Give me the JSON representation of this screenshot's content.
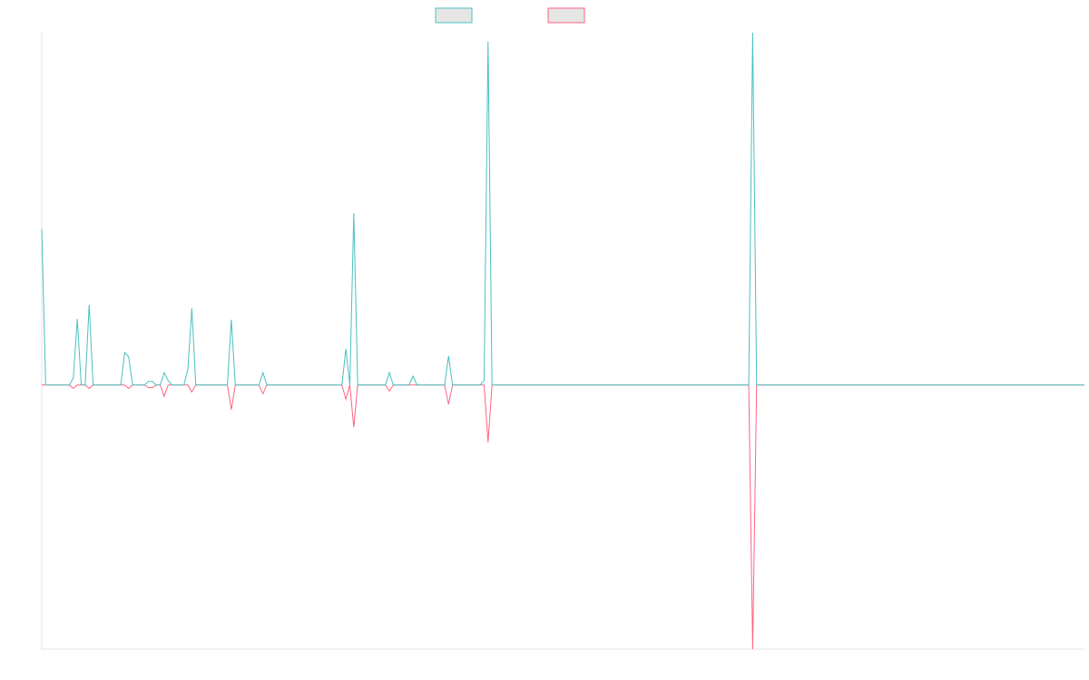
{
  "chart_data": {
    "type": "line",
    "x": [
      0,
      1,
      7,
      8,
      9,
      10,
      11,
      12,
      13,
      20,
      21,
      22,
      23,
      26,
      27,
      28,
      29,
      30,
      31,
      32,
      33,
      36,
      37,
      38,
      39,
      47,
      48,
      49,
      55,
      56,
      57,
      76,
      77,
      78,
      79,
      80,
      87,
      88,
      89,
      93,
      94,
      95,
      102,
      103,
      104,
      111,
      112,
      113,
      114,
      179,
      180,
      181,
      264
    ],
    "xlim": [
      0,
      264
    ],
    "ylim": [
      -3,
      4
    ],
    "series": [
      {
        "color": "#4bc0c0",
        "values": [
          1.77,
          0,
          0,
          0.08,
          0.75,
          0,
          0,
          0.91,
          0,
          0,
          0.37,
          0.32,
          0,
          0,
          0.04,
          0.04,
          0,
          0,
          0.14,
          0.05,
          0,
          0,
          0.18,
          0.87,
          0,
          0,
          0.74,
          0,
          0,
          0.14,
          0,
          0,
          0.41,
          0,
          1.95,
          0,
          0,
          0.14,
          0,
          0,
          0.1,
          0,
          0,
          0.33,
          0,
          0,
          0.05,
          3.9,
          0,
          0,
          4,
          0,
          0
        ]
      },
      {
        "color": "#ff6384",
        "values": [
          0,
          0,
          0,
          -0.04,
          0,
          0,
          0,
          -0.04,
          0,
          0,
          0,
          -0.04,
          0,
          0,
          -0.03,
          -0.03,
          0,
          0,
          -0.13,
          0,
          0,
          0,
          0,
          -0.08,
          0,
          0,
          -0.28,
          0,
          0,
          -0.1,
          0,
          0,
          -0.16,
          0,
          -0.48,
          0,
          0,
          -0.07,
          0,
          0,
          0,
          0,
          0,
          -0.22,
          0,
          0,
          0,
          -0.65,
          0,
          0,
          -3,
          0,
          0
        ]
      }
    ]
  }
}
